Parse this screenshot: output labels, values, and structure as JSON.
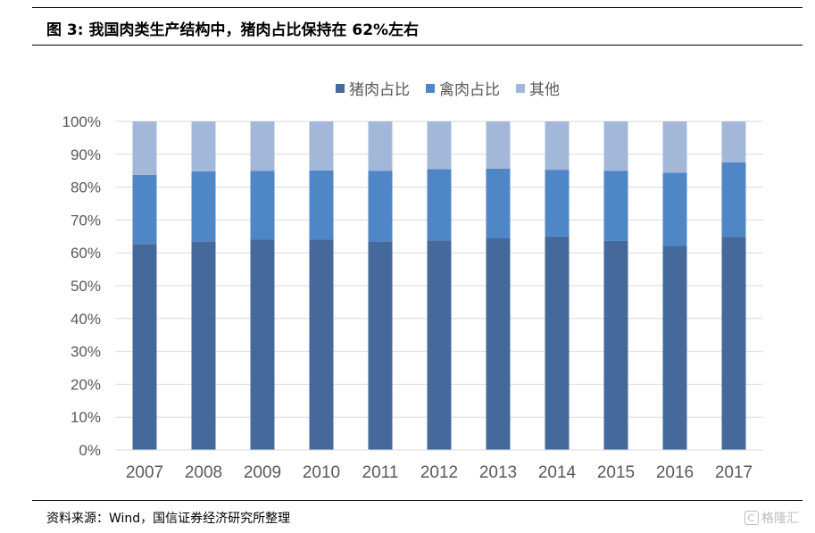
{
  "title": "图 3:  我国肉类生产结构中，猪肉占比保持在 62%左右",
  "source": "资料来源：Wind，国信证券经济研究所整理",
  "watermark": "格隆汇",
  "colors": {
    "pork": "#44699a",
    "poultry": "#4f86c6",
    "other": "#a3b8d8",
    "grid": "#d9d9d9",
    "axis_text": "#595959"
  },
  "chart_data": {
    "type": "bar",
    "stacked": true,
    "categories": [
      "2007",
      "2008",
      "2009",
      "2010",
      "2011",
      "2012",
      "2013",
      "2014",
      "2015",
      "2016",
      "2017"
    ],
    "series": [
      {
        "name": "猪肉占比",
        "values": [
          62.7,
          63.5,
          64.0,
          64.1,
          63.5,
          63.8,
          64.4,
          65.0,
          63.6,
          62.1,
          64.9
        ]
      },
      {
        "name": "禽肉占比",
        "values": [
          21.0,
          21.3,
          21.0,
          21.0,
          21.5,
          21.7,
          21.2,
          20.3,
          21.4,
          22.3,
          22.6
        ]
      },
      {
        "name": "其他",
        "values": [
          16.3,
          15.2,
          15.0,
          14.9,
          15.0,
          14.5,
          14.4,
          14.7,
          15.0,
          15.6,
          12.5
        ]
      }
    ],
    "ylim": [
      0,
      100
    ],
    "yticks": [
      "0%",
      "10%",
      "20%",
      "30%",
      "40%",
      "50%",
      "60%",
      "70%",
      "80%",
      "90%",
      "100%"
    ],
    "grid": true,
    "legend_position": "top"
  }
}
